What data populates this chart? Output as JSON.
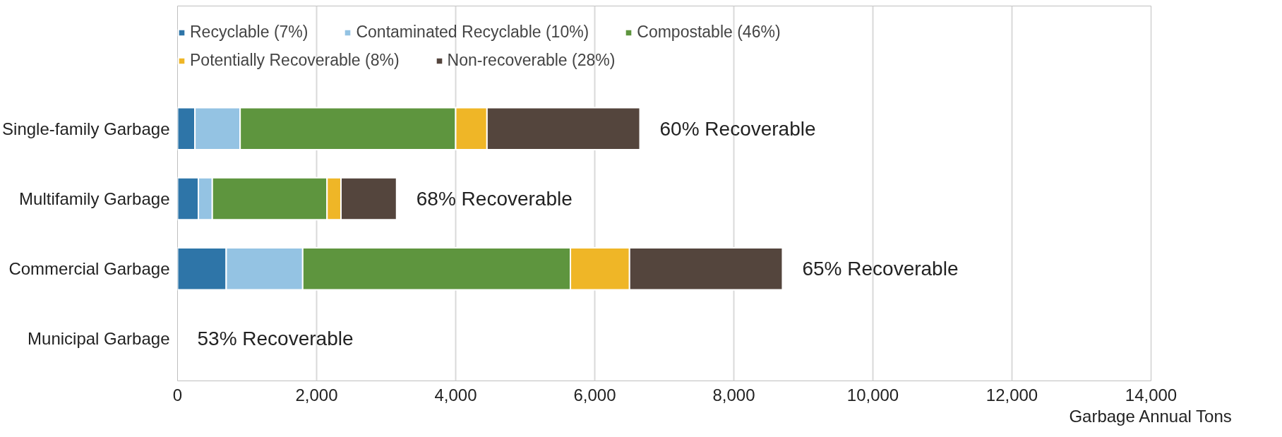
{
  "chart_data": {
    "type": "bar",
    "orientation": "horizontal",
    "stacked": true,
    "xlabel": "Garbage Annual Tons",
    "categories": [
      "Single-family Garbage",
      "Multifamily Garbage",
      "Commercial Garbage",
      "Municipal Garbage"
    ],
    "series": [
      {
        "name": "Recyclable (7%)",
        "color": "#2e75a8",
        "values": [
          250,
          300,
          700,
          null
        ]
      },
      {
        "name": "Contaminated Recyclable (10%)",
        "color": "#94c3e3",
        "values": [
          650,
          200,
          1100,
          null
        ]
      },
      {
        "name": "Compostable (46%)",
        "color": "#5e953e",
        "values": [
          3100,
          1650,
          3850,
          null
        ]
      },
      {
        "name": "Potentially Recoverable (8%)",
        "color": "#efb627",
        "values": [
          450,
          200,
          850,
          null
        ]
      },
      {
        "name": "Non-recoverable (28%)",
        "color": "#54453d",
        "values": [
          2200,
          800,
          2200,
          null
        ]
      }
    ],
    "annotations": [
      "60% Recoverable",
      "68% Recoverable",
      "65% Recoverable",
      "53% Recoverable"
    ],
    "xlim": [
      0,
      14000
    ],
    "xticks": [
      {
        "value": 0,
        "label": "0"
      },
      {
        "value": 2000,
        "label": "2,000"
      },
      {
        "value": 4000,
        "label": "4,000"
      },
      {
        "value": 6000,
        "label": "6,000"
      },
      {
        "value": 8000,
        "label": "8,000"
      },
      {
        "value": 10000,
        "label": "10,000"
      },
      {
        "value": 12000,
        "label": "12,000"
      },
      {
        "value": 14000,
        "label": "14,000"
      }
    ],
    "grid": "x",
    "legend": "top"
  }
}
